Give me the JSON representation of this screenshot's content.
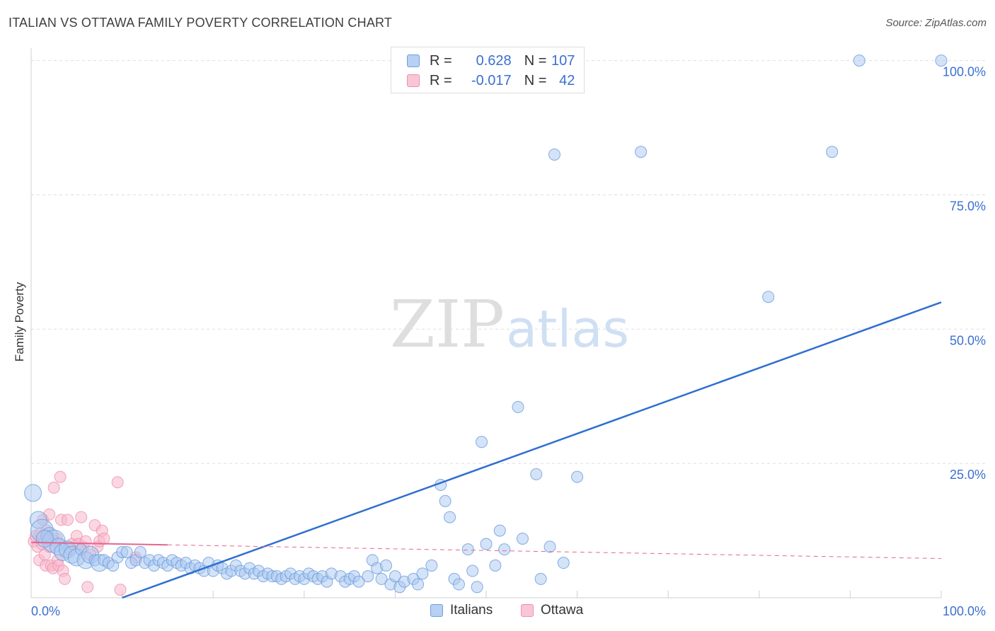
{
  "title": "ITALIAN VS OTTAWA FAMILY POVERTY CORRELATION CHART",
  "source": "Source: ZipAtlas.com",
  "watermark": {
    "zip": "ZIP",
    "atlas": "atlas"
  },
  "legend": {
    "r_label": "R =",
    "n_label": "N =",
    "rows": [
      {
        "r": "0.628",
        "n": "107",
        "color": "#7aaae6"
      },
      {
        "r": "-0.017",
        "n": "42",
        "color": "#f29bb7"
      }
    ]
  },
  "colors": {
    "blue_fill": "#a9c7f0",
    "blue_stroke": "#6f9fdf",
    "blue_line": "#2f6fd0",
    "pink_fill": "#f7b6cb",
    "pink_stroke": "#ee8fb0",
    "pink_line": "#e4668f",
    "axis_text": "#3b6fd1"
  },
  "chart_data": {
    "type": "scatter",
    "title": "ITALIAN VS OTTAWA FAMILY POVERTY CORRELATION CHART",
    "xlabel": "",
    "ylabel": "Family Poverty",
    "xlim": [
      0,
      100
    ],
    "ylim": [
      0,
      103
    ],
    "x_tick_labels": [
      "0.0%",
      "100.0%"
    ],
    "y_ticks": [
      25,
      50,
      75,
      100
    ],
    "y_tick_labels": [
      "25.0%",
      "50.0%",
      "75.0%",
      "100.0%"
    ],
    "grid": true,
    "series": [
      {
        "name": "Italians",
        "r": 0.628,
        "n": 107,
        "trend": {
          "x": [
            10,
            100
          ],
          "y": [
            0,
            55
          ]
        },
        "points": [
          {
            "x": 0.2,
            "y": 19.5,
            "s": 2
          },
          {
            "x": 0.8,
            "y": 14.5,
            "s": 2
          },
          {
            "x": 1.2,
            "y": 12.5,
            "s": 3
          },
          {
            "x": 2,
            "y": 11.5,
            "s": 2
          },
          {
            "x": 2.5,
            "y": 10.5,
            "s": 3
          },
          {
            "x": 3,
            "y": 9.5,
            "s": 2
          },
          {
            "x": 3.5,
            "y": 8.5,
            "s": 2
          },
          {
            "x": 4,
            "y": 9,
            "s": 2
          },
          {
            "x": 4.5,
            "y": 8,
            "s": 2
          },
          {
            "x": 5,
            "y": 7.5,
            "s": 2
          },
          {
            "x": 5.5,
            "y": 9,
            "s": 1
          },
          {
            "x": 6,
            "y": 7,
            "s": 2
          },
          {
            "x": 6.5,
            "y": 8,
            "s": 2
          },
          {
            "x": 7,
            "y": 7,
            "s": 1
          },
          {
            "x": 7.5,
            "y": 6.5,
            "s": 2
          },
          {
            "x": 8,
            "y": 7,
            "s": 1
          },
          {
            "x": 8.5,
            "y": 6.5,
            "s": 1
          },
          {
            "x": 9,
            "y": 6,
            "s": 1
          },
          {
            "x": 9.5,
            "y": 7.5,
            "s": 1
          },
          {
            "x": 10,
            "y": 8.5,
            "s": 1
          },
          {
            "x": 10.5,
            "y": 8.5,
            "s": 1
          },
          {
            "x": 11,
            "y": 6.5,
            "s": 1
          },
          {
            "x": 11.5,
            "y": 7,
            "s": 1
          },
          {
            "x": 12,
            "y": 8.5,
            "s": 1
          },
          {
            "x": 12.5,
            "y": 6.5,
            "s": 1
          },
          {
            "x": 13,
            "y": 7,
            "s": 1
          },
          {
            "x": 13.5,
            "y": 6,
            "s": 1
          },
          {
            "x": 14,
            "y": 7,
            "s": 1
          },
          {
            "x": 14.5,
            "y": 6.5,
            "s": 1
          },
          {
            "x": 15,
            "y": 6,
            "s": 1
          },
          {
            "x": 15.5,
            "y": 7,
            "s": 1
          },
          {
            "x": 16,
            "y": 6.5,
            "s": 1
          },
          {
            "x": 16.5,
            "y": 6,
            "s": 1
          },
          {
            "x": 17,
            "y": 6.5,
            "s": 1
          },
          {
            "x": 17.5,
            "y": 5.5,
            "s": 1
          },
          {
            "x": 18,
            "y": 6,
            "s": 1
          },
          {
            "x": 18.5,
            "y": 5.5,
            "s": 1
          },
          {
            "x": 19,
            "y": 5,
            "s": 1
          },
          {
            "x": 19.5,
            "y": 6.5,
            "s": 1
          },
          {
            "x": 20,
            "y": 5,
            "s": 1
          },
          {
            "x": 20.5,
            "y": 6,
            "s": 1
          },
          {
            "x": 21,
            "y": 5.5,
            "s": 1
          },
          {
            "x": 21.5,
            "y": 4.5,
            "s": 1
          },
          {
            "x": 22,
            "y": 5,
            "s": 1
          },
          {
            "x": 22.5,
            "y": 6,
            "s": 1
          },
          {
            "x": 23,
            "y": 5,
            "s": 1
          },
          {
            "x": 23.5,
            "y": 4.5,
            "s": 1
          },
          {
            "x": 24,
            "y": 5.5,
            "s": 1
          },
          {
            "x": 24.5,
            "y": 4.5,
            "s": 1
          },
          {
            "x": 25,
            "y": 5,
            "s": 1
          },
          {
            "x": 25.5,
            "y": 4,
            "s": 1
          },
          {
            "x": 26,
            "y": 4.5,
            "s": 1
          },
          {
            "x": 26.5,
            "y": 4,
            "s": 1
          },
          {
            "x": 27,
            "y": 4,
            "s": 1
          },
          {
            "x": 27.5,
            "y": 3.5,
            "s": 1
          },
          {
            "x": 28,
            "y": 4,
            "s": 1
          },
          {
            "x": 28.5,
            "y": 4.5,
            "s": 1
          },
          {
            "x": 29,
            "y": 3.5,
            "s": 1
          },
          {
            "x": 29.5,
            "y": 4,
            "s": 1
          },
          {
            "x": 30,
            "y": 3.5,
            "s": 1
          },
          {
            "x": 30.5,
            "y": 4.5,
            "s": 1
          },
          {
            "x": 31,
            "y": 4,
            "s": 1
          },
          {
            "x": 31.5,
            "y": 3.5,
            "s": 1
          },
          {
            "x": 32,
            "y": 4,
            "s": 1
          },
          {
            "x": 32.5,
            "y": 3,
            "s": 1
          },
          {
            "x": 33,
            "y": 4.5,
            "s": 1
          },
          {
            "x": 34,
            "y": 4,
            "s": 1
          },
          {
            "x": 34.5,
            "y": 3,
            "s": 1
          },
          {
            "x": 35,
            "y": 3.5,
            "s": 1
          },
          {
            "x": 35.5,
            "y": 4,
            "s": 1
          },
          {
            "x": 36,
            "y": 3,
            "s": 1
          },
          {
            "x": 37,
            "y": 4,
            "s": 1
          },
          {
            "x": 37.5,
            "y": 7,
            "s": 1
          },
          {
            "x": 38,
            "y": 5.5,
            "s": 1
          },
          {
            "x": 38.5,
            "y": 3.5,
            "s": 1
          },
          {
            "x": 39,
            "y": 6,
            "s": 1
          },
          {
            "x": 39.5,
            "y": 2.5,
            "s": 1
          },
          {
            "x": 40,
            "y": 4,
            "s": 1
          },
          {
            "x": 40.5,
            "y": 2,
            "s": 1
          },
          {
            "x": 41,
            "y": 3,
            "s": 1
          },
          {
            "x": 42,
            "y": 3.5,
            "s": 1
          },
          {
            "x": 42.5,
            "y": 2.5,
            "s": 1
          },
          {
            "x": 43,
            "y": 4.5,
            "s": 1
          },
          {
            "x": 44,
            "y": 6,
            "s": 1
          },
          {
            "x": 45,
            "y": 21,
            "s": 1
          },
          {
            "x": 45.5,
            "y": 18,
            "s": 1
          },
          {
            "x": 46,
            "y": 15,
            "s": 1
          },
          {
            "x": 46.5,
            "y": 3.5,
            "s": 1
          },
          {
            "x": 47,
            "y": 2.5,
            "s": 1
          },
          {
            "x": 48,
            "y": 9,
            "s": 1
          },
          {
            "x": 48.5,
            "y": 5,
            "s": 1
          },
          {
            "x": 49,
            "y": 2,
            "s": 1
          },
          {
            "x": 49.5,
            "y": 29,
            "s": 1
          },
          {
            "x": 50,
            "y": 10,
            "s": 1
          },
          {
            "x": 51,
            "y": 6,
            "s": 1
          },
          {
            "x": 51.5,
            "y": 12.5,
            "s": 1
          },
          {
            "x": 52,
            "y": 9,
            "s": 1
          },
          {
            "x": 53.5,
            "y": 35.5,
            "s": 1
          },
          {
            "x": 54,
            "y": 11,
            "s": 1
          },
          {
            "x": 55.5,
            "y": 23,
            "s": 1
          },
          {
            "x": 56,
            "y": 3.5,
            "s": 1
          },
          {
            "x": 57,
            "y": 9.5,
            "s": 1
          },
          {
            "x": 58.5,
            "y": 6.5,
            "s": 1
          },
          {
            "x": 60,
            "y": 22.5,
            "s": 1
          },
          {
            "x": 57.5,
            "y": 82.5,
            "s": 1
          },
          {
            "x": 67,
            "y": 83,
            "s": 1
          },
          {
            "x": 81,
            "y": 56,
            "s": 1
          },
          {
            "x": 88,
            "y": 83,
            "s": 1
          },
          {
            "x": 91,
            "y": 100,
            "s": 1
          },
          {
            "x": 100,
            "y": 100,
            "s": 1
          },
          {
            "x": 1.5,
            "y": 11,
            "s": 2
          }
        ]
      },
      {
        "name": "Ottawa",
        "r": -0.017,
        "n": 42,
        "trend": {
          "x": [
            0,
            100
          ],
          "y": [
            10.3,
            7.3
          ]
        },
        "points": [
          {
            "x": 0.3,
            "y": 10.5
          },
          {
            "x": 0.5,
            "y": 11.5
          },
          {
            "x": 0.7,
            "y": 9.5
          },
          {
            "x": 0.9,
            "y": 7
          },
          {
            "x": 1,
            "y": 12
          },
          {
            "x": 1.2,
            "y": 10
          },
          {
            "x": 1.3,
            "y": 14.5
          },
          {
            "x": 1.5,
            "y": 8
          },
          {
            "x": 1.6,
            "y": 6
          },
          {
            "x": 1.7,
            "y": 12.5
          },
          {
            "x": 1.8,
            "y": 11.5
          },
          {
            "x": 2,
            "y": 9.5
          },
          {
            "x": 2,
            "y": 15.5
          },
          {
            "x": 2.2,
            "y": 6
          },
          {
            "x": 2.4,
            "y": 5.5
          },
          {
            "x": 2.5,
            "y": 20.5
          },
          {
            "x": 2.6,
            "y": 10.5
          },
          {
            "x": 2.8,
            "y": 11
          },
          {
            "x": 2.9,
            "y": 7
          },
          {
            "x": 3,
            "y": 6
          },
          {
            "x": 3.2,
            "y": 22.5
          },
          {
            "x": 3.3,
            "y": 14.5
          },
          {
            "x": 3.5,
            "y": 5
          },
          {
            "x": 3.7,
            "y": 3.5
          },
          {
            "x": 4,
            "y": 14.5
          },
          {
            "x": 4.2,
            "y": 9
          },
          {
            "x": 4.5,
            "y": 10
          },
          {
            "x": 5,
            "y": 11.5
          },
          {
            "x": 5.2,
            "y": 10
          },
          {
            "x": 5.5,
            "y": 15
          },
          {
            "x": 5.7,
            "y": 9.5
          },
          {
            "x": 6,
            "y": 10.5
          },
          {
            "x": 6.2,
            "y": 2
          },
          {
            "x": 6.5,
            "y": 8
          },
          {
            "x": 7,
            "y": 13.5
          },
          {
            "x": 7.3,
            "y": 9.5
          },
          {
            "x": 7.5,
            "y": 10.5
          },
          {
            "x": 7.8,
            "y": 12.5
          },
          {
            "x": 8,
            "y": 11
          },
          {
            "x": 9.5,
            "y": 21.5
          },
          {
            "x": 9.8,
            "y": 1.5
          },
          {
            "x": 11.5,
            "y": 7.5
          }
        ]
      }
    ]
  },
  "bottom_legend": [
    {
      "label": "Italians",
      "color": "#a9c7f0"
    },
    {
      "label": "Ottawa",
      "color": "#f7b6cb"
    }
  ]
}
